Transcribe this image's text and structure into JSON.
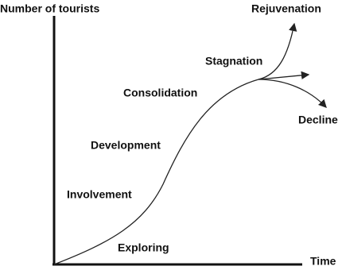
{
  "axes": {
    "y_label": "Number of tourists",
    "x_label": "Time"
  },
  "stages": [
    "Exploring",
    "Involvement",
    "Development",
    "Consolidation",
    "Stagnation"
  ],
  "outcomes": [
    "Rejuvenation",
    "Decline"
  ]
}
